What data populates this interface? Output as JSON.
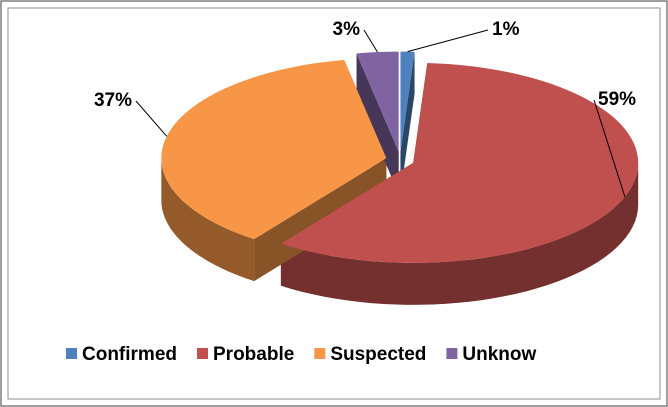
{
  "chart_data": {
    "type": "pie3d",
    "categories": [
      "Confirmed",
      "Probable",
      "Suspected",
      "Unknow"
    ],
    "values": [
      1,
      59,
      37,
      3
    ],
    "value_labels": [
      "1%",
      "59%",
      "37%",
      "3%"
    ],
    "colors": [
      "#4f81bd",
      "#c0504d",
      "#f79646",
      "#8064a2"
    ],
    "legend": "bottom"
  }
}
